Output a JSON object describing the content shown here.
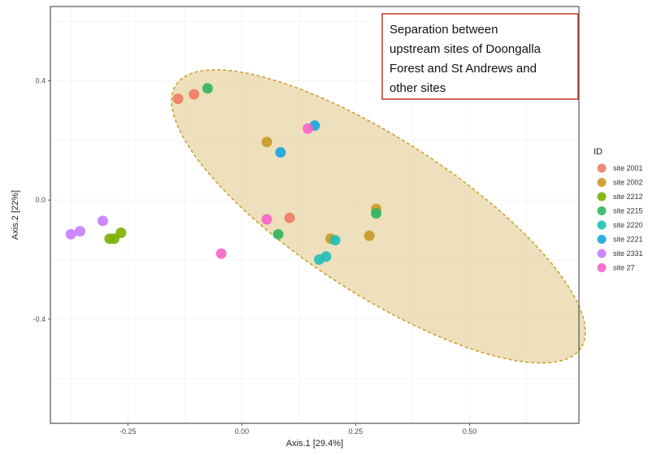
{
  "chart_data": {
    "type": "scatter",
    "xlabel": "Axis.1  [29.4%]",
    "ylabel": "Axis.2  [22%]",
    "xlim": [
      -0.42,
      0.74
    ],
    "ylim": [
      -0.75,
      0.65
    ],
    "x_ticks": [
      "-0.25",
      "0.00",
      "0.25",
      "0.50"
    ],
    "x_tick_values": [
      -0.25,
      0.0,
      0.25,
      0.5
    ],
    "y_ticks": [
      "0.4",
      "0.0",
      "-0.4"
    ],
    "y_tick_values": [
      0.4,
      0.0,
      -0.4
    ],
    "grid": true,
    "legend_title": "ID",
    "legend_position": "right",
    "series": [
      {
        "name": "site 2001",
        "color": "#F07B63",
        "points": [
          [
            -0.14,
            0.34
          ],
          [
            -0.105,
            0.355
          ],
          [
            0.105,
            -0.06
          ]
        ]
      },
      {
        "name": "site 2002",
        "color": "#C89A22",
        "points": [
          [
            0.055,
            0.195
          ],
          [
            0.195,
            -0.13
          ],
          [
            0.28,
            -0.12
          ],
          [
            0.295,
            -0.03
          ]
        ]
      },
      {
        "name": "site 2212",
        "color": "#7CAE00",
        "points": [
          [
            -0.29,
            -0.13
          ],
          [
            -0.28,
            -0.13
          ],
          [
            -0.265,
            -0.11
          ]
        ]
      },
      {
        "name": "site 2215",
        "color": "#2DB562",
        "points": [
          [
            -0.075,
            0.375
          ],
          [
            0.08,
            -0.115
          ],
          [
            0.295,
            -0.045
          ]
        ]
      },
      {
        "name": "site 2220",
        "color": "#20BFB6",
        "points": [
          [
            0.17,
            -0.2
          ],
          [
            0.185,
            -0.19
          ],
          [
            0.205,
            -0.135
          ]
        ]
      },
      {
        "name": "site 2221",
        "color": "#16A5E0",
        "points": [
          [
            0.085,
            0.16
          ],
          [
            0.16,
            0.25
          ]
        ]
      },
      {
        "name": "site 2331",
        "color": "#C77CFF",
        "points": [
          [
            -0.375,
            -0.115
          ],
          [
            -0.355,
            -0.105
          ],
          [
            -0.305,
            -0.07
          ]
        ]
      },
      {
        "name": "site 27",
        "color": "#F564C8",
        "points": [
          [
            -0.045,
            -0.18
          ],
          [
            0.055,
            -0.065
          ],
          [
            0.145,
            0.24
          ]
        ]
      }
    ],
    "ellipse": {
      "cx": 0.3,
      "cy": -0.055,
      "rx": 0.53,
      "ry": 0.17,
      "rotation_deg": -33,
      "fill": "#E8D5A6",
      "stroke": "#C9A233"
    },
    "annotation": {
      "lines": [
        "Separation between",
        "upstream sites of Doongalla",
        "Forest and St Andrews and",
        "other sites"
      ],
      "border_color": "#C0392B"
    }
  }
}
